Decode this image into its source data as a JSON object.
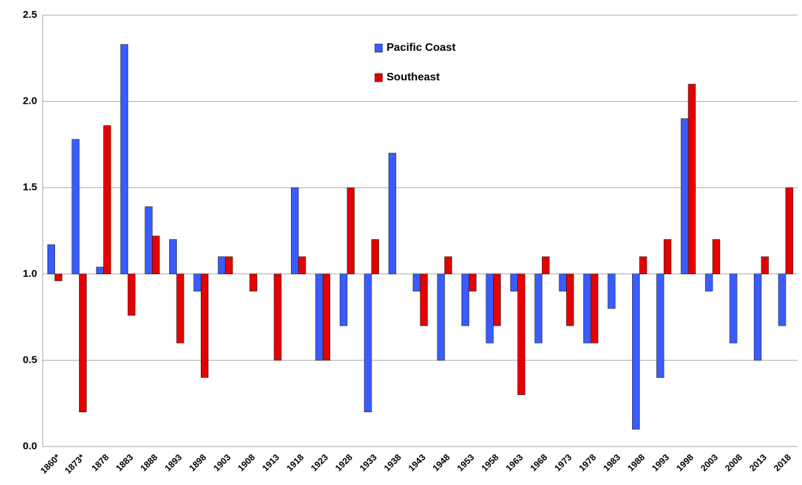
{
  "chart_data": {
    "type": "bar",
    "categories": [
      "1860*",
      "1873*",
      "1878",
      "1883",
      "1888",
      "1893",
      "1898",
      "1903",
      "1908",
      "1913",
      "1918",
      "1923",
      "1928",
      "1933",
      "1938",
      "1943",
      "1948",
      "1953",
      "1958",
      "1963",
      "1968",
      "1973",
      "1978",
      "1983",
      "1988",
      "1993",
      "1998",
      "2003",
      "2008",
      "2013",
      "2018"
    ],
    "series": [
      {
        "name": "Pacific Coast",
        "color": "#3a5cff",
        "values": [
          1.17,
          1.78,
          1.04,
          2.33,
          1.39,
          1.2,
          0.9,
          1.1,
          1.0,
          1.0,
          1.5,
          0.5,
          0.7,
          0.2,
          1.7,
          0.9,
          0.5,
          0.7,
          0.6,
          0.9,
          0.6,
          0.9,
          0.6,
          0.8,
          0.1,
          0.4,
          1.9,
          0.9,
          0.6,
          0.5,
          0.7
        ]
      },
      {
        "name": "Southeast",
        "color": "#e60000",
        "values": [
          0.96,
          0.2,
          1.86,
          0.76,
          1.22,
          0.6,
          0.4,
          1.1,
          0.9,
          0.5,
          1.1,
          0.5,
          1.5,
          1.2,
          1.0,
          0.7,
          1.1,
          0.9,
          0.7,
          0.3,
          1.1,
          0.7,
          0.6,
          1.0,
          1.1,
          1.2,
          2.1,
          1.2,
          1.0,
          1.1,
          1.5
        ]
      }
    ],
    "bar_base": 1,
    "ylim": [
      0,
      2.5
    ],
    "yticks": [
      {
        "value": 0,
        "label": "0.0"
      },
      0.5,
      {
        "value": 1,
        "label": "1.0"
      },
      1.5,
      {
        "value": 2,
        "label": "2.0"
      },
      2.5
    ],
    "grid": true
  }
}
